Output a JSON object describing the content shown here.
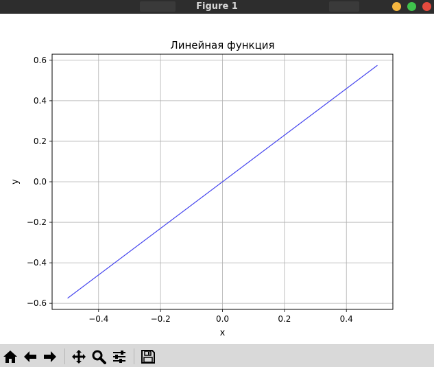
{
  "window": {
    "title": "Figure 1",
    "controls": [
      "minimize-button",
      "maximize-button",
      "close-button"
    ],
    "colors": {
      "minimize": "#f4b63f",
      "maximize": "#3fc24c",
      "close": "#e64a3e"
    }
  },
  "chart_data": {
    "type": "line",
    "title": "Линейная функция",
    "xlabel": "x",
    "ylabel": "y",
    "xlim": [
      -0.55,
      0.55
    ],
    "ylim": [
      -0.63,
      0.63
    ],
    "xticks": [
      -0.4,
      -0.2,
      0.0,
      0.2,
      0.4
    ],
    "xtick_labels": [
      "−0.4",
      "−0.2",
      "0.0",
      "0.2",
      "0.4"
    ],
    "yticks": [
      -0.6,
      -0.4,
      -0.2,
      0.0,
      0.2,
      0.4,
      0.6
    ],
    "ytick_labels": [
      "−0.6",
      "−0.4",
      "−0.2",
      "0.0",
      "0.2",
      "0.4",
      "0.6"
    ],
    "grid": true,
    "series": [
      {
        "color": "#4444ee",
        "x": [
          -0.5,
          0.5
        ],
        "y": [
          -0.575,
          0.575
        ]
      }
    ]
  },
  "toolbar": {
    "buttons": [
      {
        "name": "home-button",
        "icon": "home-icon"
      },
      {
        "name": "back-button",
        "icon": "arrow-left-icon"
      },
      {
        "name": "forward-button",
        "icon": "arrow-right-icon"
      },
      {
        "name": "pan-button",
        "icon": "move-icon"
      },
      {
        "name": "zoom-button",
        "icon": "magnifier-icon"
      },
      {
        "name": "configure-subplots-button",
        "icon": "sliders-icon"
      },
      {
        "name": "save-button",
        "icon": "floppy-icon"
      }
    ]
  }
}
